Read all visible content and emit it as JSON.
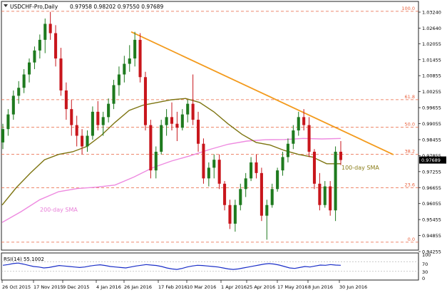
{
  "chart_data": {
    "type": "candlestick",
    "header": {
      "symbol": "USDCHF-Pro,Daily",
      "ohlc": "0.97958 0.98202 0.97550 0.97689"
    },
    "y_ticks": [
      "1.03240",
      "1.02640",
      "1.02055",
      "1.01455",
      "1.00855",
      "1.00255",
      "0.99655",
      "0.99055",
      "0.98455",
      "0.97855",
      "0.97255",
      "0.96655",
      "0.96055",
      "0.95455",
      "0.94855",
      "0.94255"
    ],
    "current_price": "0.97689",
    "x_ticks": [
      "26 Oct 2015",
      "17 Nov 2015",
      "9 Dec 2015",
      "4 Jan 2016",
      "26 Jan 2016",
      "17 Feb 2016",
      "10 Mar 2016",
      "1 Apr 2016",
      "25 Apr 2016",
      "17 May 2016",
      "8 Jun 2016",
      "30 Jun 2016"
    ],
    "fib_levels": [
      {
        "label": "100.0",
        "price": 1.0327
      },
      {
        "label": "61.8",
        "price": 0.99955
      },
      {
        "label": "50.0",
        "price": 0.98925
      },
      {
        "label": "38.2",
        "price": 0.97905
      },
      {
        "label": "23.6",
        "price": 0.96645
      },
      {
        "label": "0.0",
        "price": 0.94605
      }
    ],
    "annotations": {
      "sma100": "100-day SMA",
      "sma200": "200-day SMA"
    },
    "trendline": {
      "start_price": 1.025,
      "end_price": 0.9789
    },
    "sma100_points": [
      0.96,
      0.9665,
      0.972,
      0.977,
      0.979,
      0.98,
      0.982,
      0.986,
      0.991,
      0.9955,
      0.9975,
      0.9985,
      0.9995,
      1.0,
      0.9985,
      0.995,
      0.9905,
      0.9865,
      0.9835,
      0.9825,
      0.9805,
      0.979,
      0.978,
      0.9755,
      0.9755
    ],
    "sma200_points": [
      0.9535,
      0.9575,
      0.962,
      0.965,
      0.9662,
      0.9667,
      0.9675,
      0.9705,
      0.974,
      0.9765,
      0.9785,
      0.9808,
      0.9828,
      0.984,
      0.9845,
      0.9846,
      0.985,
      0.9848,
      0.985
    ],
    "candles": [
      [
        0.9835,
        0.9905,
        0.981,
        0.9885
      ],
      [
        0.9885,
        0.996,
        0.986,
        0.994
      ],
      [
        0.994,
        1.003,
        0.992,
        1.001
      ],
      [
        1.001,
        1.0065,
        0.998,
        1.004
      ],
      [
        1.004,
        1.011,
        1.002,
        1.009
      ],
      [
        1.009,
        1.015,
        1.006,
        1.0135
      ],
      [
        1.0135,
        1.0195,
        1.011,
        1.018
      ],
      [
        1.018,
        1.024,
        1.015,
        1.022
      ],
      [
        1.022,
        1.03,
        1.017,
        1.028
      ],
      [
        1.028,
        1.0325,
        1.022,
        1.0245
      ],
      [
        1.0245,
        1.0275,
        1.012,
        1.015
      ],
      [
        1.015,
        1.019,
        1.001,
        1.003
      ],
      [
        1.003,
        1.006,
        0.992,
        0.996
      ],
      [
        0.996,
        0.9995,
        0.986,
        0.99
      ],
      [
        0.99,
        0.9935,
        0.982,
        0.986
      ],
      [
        0.986,
        0.9885,
        0.979,
        0.982
      ],
      [
        0.982,
        0.988,
        0.98,
        0.986
      ],
      [
        0.986,
        0.997,
        0.9845,
        0.995
      ],
      [
        0.995,
        0.999,
        0.988,
        0.99
      ],
      [
        0.99,
        0.995,
        0.986,
        0.993
      ],
      [
        0.993,
        1.0,
        0.991,
        0.998
      ],
      [
        0.998,
        1.007,
        0.996,
        1.005
      ],
      [
        1.005,
        1.012,
        1.001,
        1.009
      ],
      [
        1.009,
        1.016,
        1.006,
        1.013
      ],
      [
        1.013,
        1.02,
        1.01,
        1.015
      ],
      [
        1.015,
        1.025,
        1.012,
        1.022
      ],
      [
        1.022,
        1.0245,
        1.006,
        1.008
      ],
      [
        1.008,
        1.01,
        0.988,
        0.99
      ],
      [
        0.99,
        0.992,
        0.97,
        0.973
      ],
      [
        0.973,
        0.982,
        0.97,
        0.98
      ],
      [
        0.98,
        0.992,
        0.979,
        0.99
      ],
      [
        0.99,
        0.996,
        0.986,
        0.993
      ],
      [
        0.993,
        0.9985,
        0.988,
        0.9905
      ],
      [
        0.9905,
        0.995,
        0.984,
        0.989
      ],
      [
        0.989,
        0.996,
        0.988,
        0.994
      ],
      [
        0.994,
        0.9995,
        0.991,
        0.998
      ],
      [
        0.998,
        1.009,
        0.99,
        0.992
      ],
      [
        0.992,
        0.995,
        0.98,
        0.983
      ],
      [
        0.983,
        0.985,
        0.968,
        0.97
      ],
      [
        0.97,
        0.976,
        0.967,
        0.974
      ],
      [
        0.974,
        0.979,
        0.97,
        0.977
      ],
      [
        0.977,
        0.979,
        0.966,
        0.968
      ],
      [
        0.968,
        0.969,
        0.958,
        0.96
      ],
      [
        0.96,
        0.962,
        0.951,
        0.953
      ],
      [
        0.953,
        0.962,
        0.95,
        0.96
      ],
      [
        0.96,
        0.968,
        0.958,
        0.966
      ],
      [
        0.966,
        0.972,
        0.963,
        0.97
      ],
      [
        0.97,
        0.978,
        0.969,
        0.976
      ],
      [
        0.976,
        0.979,
        0.97,
        0.972
      ],
      [
        0.972,
        0.974,
        0.954,
        0.956
      ],
      [
        0.956,
        0.962,
        0.947,
        0.96
      ],
      [
        0.96,
        0.968,
        0.959,
        0.966
      ],
      [
        0.966,
        0.974,
        0.965,
        0.973
      ],
      [
        0.973,
        0.98,
        0.971,
        0.978
      ],
      [
        0.978,
        0.985,
        0.976,
        0.983
      ],
      [
        0.983,
        0.99,
        0.981,
        0.988
      ],
      [
        0.988,
        0.995,
        0.986,
        0.993
      ],
      [
        0.993,
        0.996,
        0.988,
        0.99
      ],
      [
        0.99,
        0.993,
        0.978,
        0.98
      ],
      [
        0.98,
        0.981,
        0.966,
        0.968
      ],
      [
        0.968,
        0.972,
        0.958,
        0.96
      ],
      [
        0.96,
        0.969,
        0.959,
        0.967
      ],
      [
        0.967,
        0.969,
        0.956,
        0.958
      ],
      [
        0.958,
        0.982,
        0.954,
        0.98
      ],
      [
        0.98,
        0.984,
        0.975,
        0.9769
      ]
    ],
    "rsi": {
      "label": "RSI(14) 55.1002",
      "ticks": [
        "100",
        "70",
        "30",
        "0"
      ],
      "values": [
        55,
        58,
        62,
        64,
        60,
        55,
        50,
        48,
        44,
        46,
        50,
        54,
        52,
        50,
        48,
        46,
        48,
        52,
        55,
        57,
        54,
        50,
        48,
        46,
        44,
        48,
        52,
        55,
        58,
        56,
        54,
        50,
        44,
        40,
        38,
        42,
        48,
        52,
        55,
        54,
        52,
        50,
        48,
        44,
        40,
        38,
        40,
        44,
        48,
        52,
        56,
        60,
        62,
        60,
        56,
        50,
        44,
        42,
        46,
        50,
        48,
        52,
        56,
        55,
        58,
        56,
        55.1
      ]
    }
  }
}
